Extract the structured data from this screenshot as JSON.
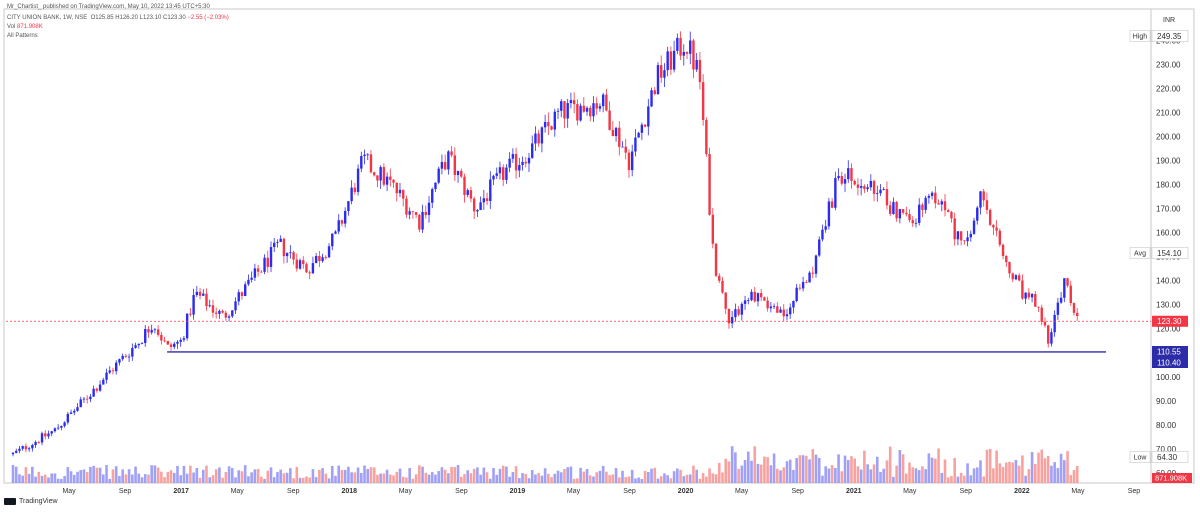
{
  "header": {
    "published_line": "Mr_Chartist_ published on TradingView.com, May 10, 2022 13:45 UTC+5:30",
    "symbol_line": {
      "symbol": "CITY UNION BANK, 1W, NSE",
      "open": "O125.85",
      "high": "H126.20",
      "low": "L123.10",
      "close": "C123.30",
      "change": "−2.55 (−2.03%)"
    },
    "volume_line": {
      "label": "Vol",
      "value": "871.908K"
    },
    "indicator_line": "All Patterns"
  },
  "footer": {
    "brand": "TradingView"
  },
  "colors": {
    "up": "#2c2cf0",
    "down": "#f23645",
    "up_volume": "#8f8ff5",
    "down_volume": "#f7928f",
    "support_line": "#2c2ca8",
    "price_line": "#f23645",
    "axis_text": "#333333",
    "border": "#c8c8c8"
  },
  "chart_data": {
    "type": "candlestick",
    "title": "CITY UNION BANK, 1W, NSE",
    "currency_label": "INR",
    "ylim": [
      56,
      252
    ],
    "y_ticks": [
      60,
      70,
      80,
      90,
      100,
      110,
      120,
      130,
      140,
      150,
      160,
      170,
      180,
      190,
      200,
      210,
      220,
      230,
      240
    ],
    "x_ticks": [
      "May",
      "Sep",
      "2017",
      "May",
      "Sep",
      "2018",
      "May",
      "Sep",
      "2019",
      "May",
      "Sep",
      "2020",
      "May",
      "Sep",
      "2021",
      "May",
      "Sep",
      "2022",
      "May",
      "Sep"
    ],
    "x_tick_dates": [
      "2016-05",
      "2016-09",
      "2017-01",
      "2017-05",
      "2017-09",
      "2018-01",
      "2018-05",
      "2018-09",
      "2019-01",
      "2019-05",
      "2019-09",
      "2020-01",
      "2020-05",
      "2020-09",
      "2021-01",
      "2021-05",
      "2021-09",
      "2022-01",
      "2022-05",
      "2022-09"
    ],
    "series_anchors": [
      {
        "date": "2016-01",
        "close": 68
      },
      {
        "date": "2016-04",
        "close": 78
      },
      {
        "date": "2016-06",
        "close": 90
      },
      {
        "date": "2016-08",
        "close": 103
      },
      {
        "date": "2016-10",
        "close": 115
      },
      {
        "date": "2016-11",
        "close": 123
      },
      {
        "date": "2016-12",
        "close": 112
      },
      {
        "date": "2017-01",
        "close": 115
      },
      {
        "date": "2017-02",
        "close": 135
      },
      {
        "date": "2017-04",
        "close": 125
      },
      {
        "date": "2017-06",
        "close": 140
      },
      {
        "date": "2017-08",
        "close": 155
      },
      {
        "date": "2017-10",
        "close": 145
      },
      {
        "date": "2017-12",
        "close": 158
      },
      {
        "date": "2018-02",
        "close": 190
      },
      {
        "date": "2018-04",
        "close": 180
      },
      {
        "date": "2018-06",
        "close": 165
      },
      {
        "date": "2018-08",
        "close": 192
      },
      {
        "date": "2018-10",
        "close": 170
      },
      {
        "date": "2018-12",
        "close": 185
      },
      {
        "date": "2019-02",
        "close": 195
      },
      {
        "date": "2019-04",
        "close": 210
      },
      {
        "date": "2019-07",
        "close": 215
      },
      {
        "date": "2019-09",
        "close": 190
      },
      {
        "date": "2019-11",
        "close": 225
      },
      {
        "date": "2020-01",
        "close": 240
      },
      {
        "date": "2020-02",
        "close": 225
      },
      {
        "date": "2020-03",
        "close": 150
      },
      {
        "date": "2020-04",
        "close": 125
      },
      {
        "date": "2020-06",
        "close": 135
      },
      {
        "date": "2020-08",
        "close": 125
      },
      {
        "date": "2020-10",
        "close": 145
      },
      {
        "date": "2020-12",
        "close": 185
      },
      {
        "date": "2021-03",
        "close": 175
      },
      {
        "date": "2021-05",
        "close": 165
      },
      {
        "date": "2021-07",
        "close": 175
      },
      {
        "date": "2021-09",
        "close": 152
      },
      {
        "date": "2021-10",
        "close": 175
      },
      {
        "date": "2021-12",
        "close": 145
      },
      {
        "date": "2022-01",
        "close": 135
      },
      {
        "date": "2022-02",
        "close": 130
      },
      {
        "date": "2022-03",
        "close": 115
      },
      {
        "date": "2022-04",
        "close": 140
      },
      {
        "date": "2022-05",
        "close": 123.3
      }
    ],
    "support_level": 110.55,
    "price_labels": [
      {
        "label": "High",
        "value": "249.35"
      },
      {
        "label": "Avg",
        "value": "154.10"
      },
      {
        "label": "",
        "value": "123.30"
      },
      {
        "label": "",
        "value": "110.55"
      },
      {
        "label": "",
        "value": "110.40"
      },
      {
        "label": "Low",
        "value": "64.30"
      }
    ],
    "volume_label": "871.908K",
    "grid": false,
    "legend": "none"
  }
}
